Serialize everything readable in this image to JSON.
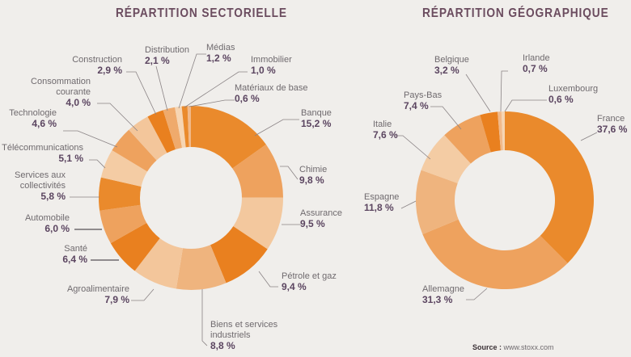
{
  "chart_data": [
    {
      "type": "pie",
      "variant": "donut",
      "title": "RÉPARTITION SECTORIELLE",
      "unit": "%",
      "slices": [
        {
          "label": "Banque",
          "value": 15.2,
          "display": "15,2 %",
          "color": "#ea8a2c"
        },
        {
          "label": "Chimie",
          "value": 9.8,
          "display": "9,8 %",
          "color": "#eea25e"
        },
        {
          "label": "Assurance",
          "value": 9.5,
          "display": "9,5 %",
          "color": "#f3c89e"
        },
        {
          "label": "Pétrole et gaz",
          "value": 9.4,
          "display": "9,4 %",
          "color": "#e9801f"
        },
        {
          "label": "Biens et services industriels",
          "value": 8.8,
          "display": "8,8 %",
          "color": "#efb47e"
        },
        {
          "label": "Agroalimentaire",
          "value": 7.9,
          "display": "7,9 %",
          "color": "#f3c69b"
        },
        {
          "label": "Santé",
          "value": 6.4,
          "display": "6,4 %",
          "color": "#e9801f"
        },
        {
          "label": "Automobile",
          "value": 6.0,
          "display": "6,0 %",
          "color": "#eea25e"
        },
        {
          "label": "Services aux collectivités",
          "value": 5.8,
          "display": "5,8 %",
          "color": "#ea8a2c"
        },
        {
          "label": "Télécommunications",
          "value": 5.1,
          "display": "5,1 %",
          "color": "#f4cca4"
        },
        {
          "label": "Technologie",
          "value": 4.6,
          "display": "4,6 %",
          "color": "#eea25e"
        },
        {
          "label": "Consommation courante",
          "value": 4.0,
          "display": "4,0 %",
          "color": "#f3c69b"
        },
        {
          "label": "Construction",
          "value": 2.9,
          "display": "2,9 %",
          "color": "#e9801f"
        },
        {
          "label": "Distribution",
          "value": 2.1,
          "display": "2,1 %",
          "color": "#efaa6c"
        },
        {
          "label": "Médias",
          "value": 1.2,
          "display": "1,2 %",
          "color": "#f6d5b3"
        },
        {
          "label": "Immobilier",
          "value": 1.0,
          "display": "1,0 %",
          "color": "#ea8a2c"
        },
        {
          "label": "Matériaux de base",
          "value": 0.6,
          "display": "0,6 %",
          "color": "#f1b98a"
        }
      ]
    },
    {
      "type": "pie",
      "variant": "donut",
      "title": "RÉPARTITION GÉOGRAPHIQUE",
      "unit": "%",
      "slices": [
        {
          "label": "France",
          "value": 37.6,
          "display": "37,6 %",
          "color": "#ea8a2c"
        },
        {
          "label": "Allemagne",
          "value": 31.3,
          "display": "31,3 %",
          "color": "#eea25e"
        },
        {
          "label": "Espagne",
          "value": 11.8,
          "display": "11,8 %",
          "color": "#efb47e"
        },
        {
          "label": "Italie",
          "value": 7.6,
          "display": "7,6 %",
          "color": "#f4cca4"
        },
        {
          "label": "Pays-Bas",
          "value": 7.4,
          "display": "7,4 %",
          "color": "#eea25e"
        },
        {
          "label": "Belgique",
          "value": 3.2,
          "display": "3,2 %",
          "color": "#e9801f"
        },
        {
          "label": "Irlande",
          "value": 0.7,
          "display": "0,7 %",
          "color": "#f1b98a"
        },
        {
          "label": "Luxembourg",
          "value": 0.6,
          "display": "0,6 %",
          "color": "#f6d5b3"
        }
      ]
    }
  ],
  "labels": {
    "sector": {
      "banque": "Banque",
      "chimie": "Chimie",
      "assurance": "Assurance",
      "petrole": "Pétrole et gaz",
      "biens_1": "Biens et services",
      "biens_2": "industriels",
      "agro": "Agroalimentaire",
      "sante": "Santé",
      "auto": "Automobile",
      "services_1": "Services aux",
      "services_2": "collectivités",
      "telecom": "Télécommunications",
      "techno": "Technologie",
      "conso_1": "Consommation",
      "conso_2": "courante",
      "construction": "Construction",
      "distribution": "Distribution",
      "medias": "Médias",
      "immobilier": "Immobilier",
      "materiaux": "Matériaux de base"
    },
    "geo": {
      "france": "France",
      "allemagne": "Allemagne",
      "espagne": "Espagne",
      "italie": "Italie",
      "paysbas": "Pays-Bas",
      "belgique": "Belgique",
      "irlande": "Irlande",
      "luxembourg": "Luxembourg"
    }
  },
  "source": {
    "label": "Source :",
    "url": "www.stoxx.com"
  },
  "colors": {
    "background": "#f0eeeb",
    "title": "#6b4c5f",
    "value_text": "#5b4560",
    "leader": "#8a8385"
  }
}
